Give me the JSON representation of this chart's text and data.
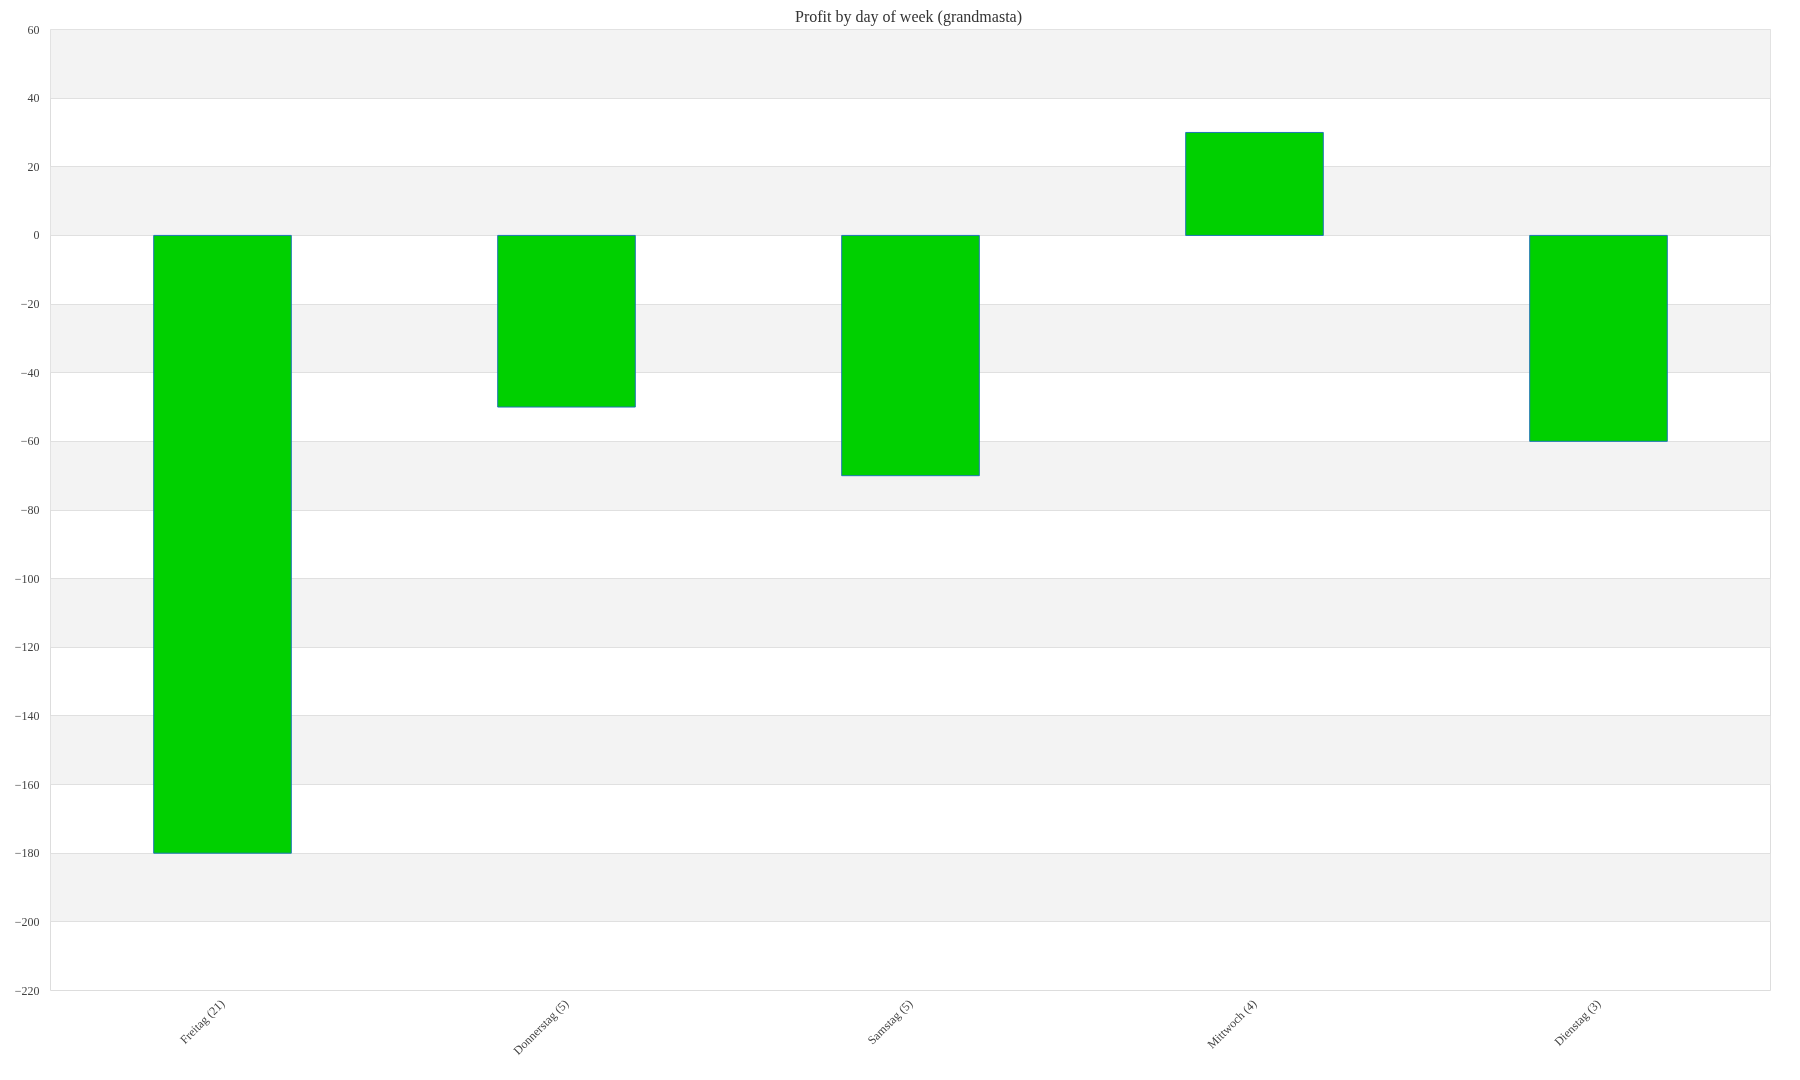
{
  "chart_data": {
    "type": "bar",
    "title": "Profit by day of week  (grandmasta)",
    "categories": [
      "Freitag (21)",
      "Donnerstag (5)",
      "Samstag (5)",
      "Mittwoch (4)",
      "Dienstag (3)"
    ],
    "values": [
      -180,
      -50,
      -70,
      30,
      -60
    ],
    "color": "#00d000",
    "ylim": [
      -220,
      60
    ],
    "yticks": [
      -220,
      -200,
      -180,
      -160,
      -140,
      -120,
      -100,
      -80,
      -60,
      -40,
      -20,
      0,
      20,
      40,
      60
    ],
    "grid": "y"
  }
}
